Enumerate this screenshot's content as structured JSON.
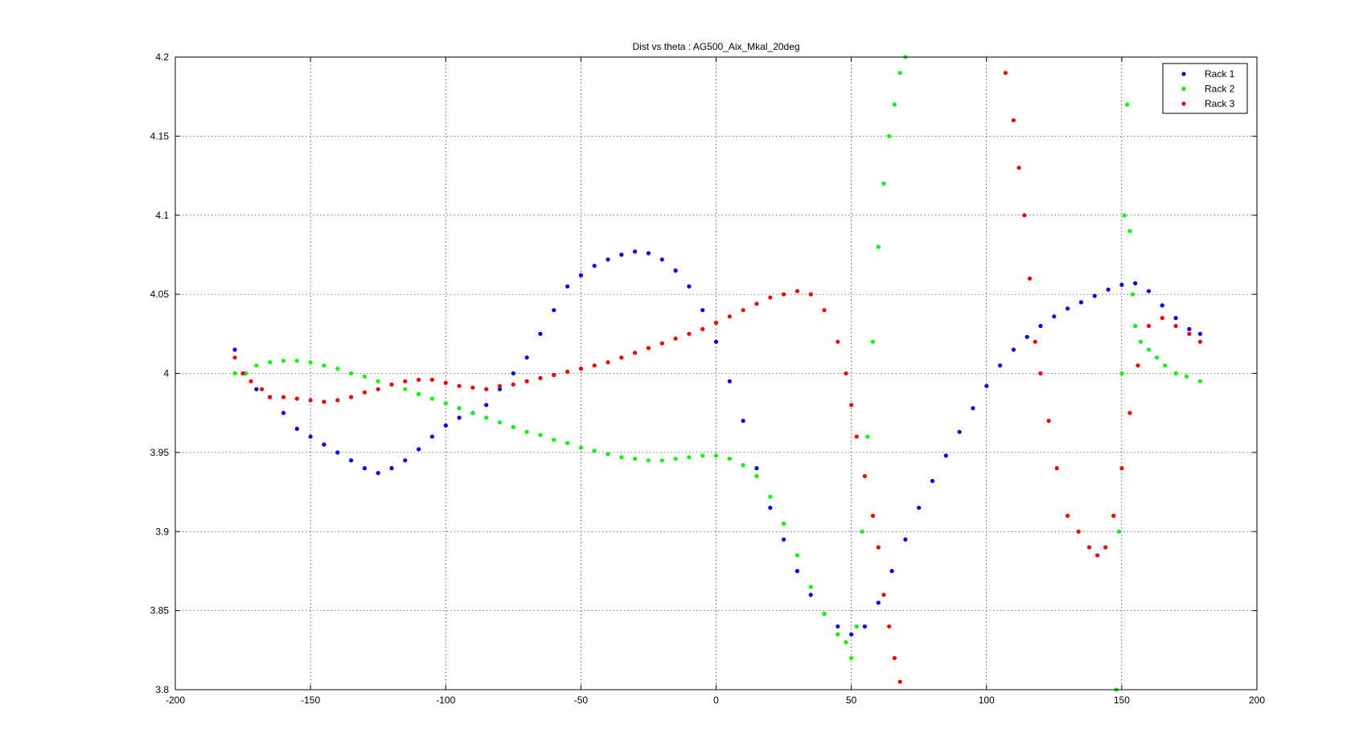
{
  "chart_data": {
    "type": "scatter",
    "title": "Dist vs theta : AG500_Aix_Mkal_20deg",
    "xlabel": "",
    "ylabel": "",
    "xlim": [
      -200,
      200
    ],
    "ylim": [
      3.8,
      4.2
    ],
    "xticks": [
      -200,
      -150,
      -100,
      -50,
      0,
      50,
      100,
      150,
      200
    ],
    "yticks": [
      3.8,
      3.85,
      3.9,
      3.95,
      4,
      4.05,
      4.1,
      4.15,
      4.2
    ],
    "xtick_labels": [
      "-200",
      "-150",
      "-100",
      "-50",
      "0",
      "50",
      "100",
      "150",
      "200"
    ],
    "ytick_labels": [
      "3.8",
      "3.85",
      "3.9",
      "3.95",
      "4",
      "4.05",
      "4.1",
      "4.15",
      "4.2"
    ],
    "grid": true,
    "legend_position": "top-right",
    "series": [
      {
        "name": "Rack 1",
        "color": "#0000ff",
        "marker": "dot",
        "x": [
          -178,
          -174,
          -170,
          -165,
          -160,
          -155,
          -150,
          -145,
          -140,
          -135,
          -130,
          -125,
          -120,
          -115,
          -110,
          -105,
          -100,
          -95,
          -90,
          -85,
          -80,
          -75,
          -70,
          -65,
          -60,
          -55,
          -50,
          -45,
          -40,
          -35,
          -30,
          -25,
          -20,
          -15,
          -10,
          -5,
          0,
          5,
          10,
          15,
          20,
          25,
          30,
          35,
          40,
          45,
          50,
          55,
          60,
          65,
          70,
          75,
          80,
          85,
          90,
          95,
          100,
          105,
          110,
          115,
          120,
          125,
          130,
          135,
          140,
          145,
          150,
          155,
          160,
          165,
          170,
          175,
          179
        ],
        "y": [
          4.015,
          4.0,
          3.99,
          3.985,
          3.975,
          3.965,
          3.96,
          3.955,
          3.95,
          3.945,
          3.94,
          3.937,
          3.94,
          3.945,
          3.952,
          3.96,
          3.967,
          3.972,
          3.975,
          3.98,
          3.99,
          4.0,
          4.01,
          4.025,
          4.04,
          4.055,
          4.062,
          4.068,
          4.072,
          4.075,
          4.077,
          4.076,
          4.072,
          4.065,
          4.055,
          4.04,
          4.02,
          3.995,
          3.97,
          3.94,
          3.915,
          3.895,
          3.875,
          3.86,
          3.848,
          3.84,
          3.835,
          3.84,
          3.855,
          3.875,
          3.895,
          3.915,
          3.932,
          3.948,
          3.963,
          3.978,
          3.992,
          4.005,
          4.015,
          4.023,
          4.03,
          4.036,
          4.041,
          4.045,
          4.049,
          4.053,
          4.056,
          4.057,
          4.052,
          4.043,
          4.035,
          4.028,
          4.025
        ]
      },
      {
        "name": "Rack 2",
        "color": "#00ff00",
        "marker": "dot",
        "x": [
          -178,
          -174,
          -170,
          -165,
          -160,
          -155,
          -150,
          -145,
          -140,
          -135,
          -130,
          -125,
          -120,
          -115,
          -110,
          -105,
          -100,
          -95,
          -90,
          -85,
          -80,
          -75,
          -70,
          -65,
          -60,
          -55,
          -50,
          -45,
          -40,
          -35,
          -30,
          -25,
          -20,
          -15,
          -10,
          -5,
          0,
          5,
          10,
          15,
          20,
          25,
          30,
          35,
          40,
          45,
          48,
          50,
          52,
          54,
          56,
          58,
          60,
          62,
          64,
          66,
          68,
          70,
          148,
          149,
          150,
          151,
          152,
          153,
          154,
          155,
          157,
          160,
          163,
          166,
          170,
          174,
          179
        ],
        "y": [
          4.0,
          4.0,
          4.005,
          4.007,
          4.008,
          4.008,
          4.007,
          4.005,
          4.003,
          4.0,
          3.998,
          3.995,
          3.993,
          3.99,
          3.987,
          3.984,
          3.981,
          3.978,
          3.975,
          3.972,
          3.969,
          3.966,
          3.963,
          3.961,
          3.958,
          3.956,
          3.953,
          3.951,
          3.949,
          3.947,
          3.946,
          3.945,
          3.945,
          3.946,
          3.947,
          3.948,
          3.948,
          3.946,
          3.942,
          3.935,
          3.922,
          3.905,
          3.885,
          3.865,
          3.848,
          3.835,
          3.83,
          3.82,
          3.84,
          3.9,
          3.96,
          4.02,
          4.08,
          4.12,
          4.15,
          4.17,
          4.19,
          4.2,
          3.8,
          3.9,
          4.0,
          4.1,
          4.17,
          4.09,
          4.05,
          4.03,
          4.02,
          4.015,
          4.01,
          4.005,
          4.0,
          3.998,
          3.995
        ]
      },
      {
        "name": "Rack 3",
        "color": "#ff0000",
        "marker": "dot",
        "x": [
          -178,
          -175,
          -172,
          -168,
          -165,
          -160,
          -155,
          -150,
          -145,
          -140,
          -135,
          -130,
          -125,
          -120,
          -115,
          -110,
          -105,
          -100,
          -95,
          -90,
          -85,
          -80,
          -75,
          -70,
          -65,
          -60,
          -55,
          -50,
          -45,
          -40,
          -35,
          -30,
          -25,
          -20,
          -15,
          -10,
          -5,
          0,
          5,
          10,
          15,
          20,
          25,
          30,
          35,
          40,
          45,
          48,
          50,
          52,
          55,
          58,
          60,
          62,
          64,
          66,
          68,
          107,
          110,
          112,
          114,
          116,
          118,
          120,
          123,
          126,
          130,
          134,
          138,
          141,
          144,
          147,
          150,
          153,
          156,
          160,
          165,
          170,
          175,
          179
        ],
        "y": [
          4.01,
          4.0,
          3.995,
          3.99,
          3.985,
          3.985,
          3.984,
          3.983,
          3.982,
          3.983,
          3.985,
          3.988,
          3.99,
          3.993,
          3.995,
          3.996,
          3.996,
          3.994,
          3.992,
          3.991,
          3.99,
          3.992,
          3.993,
          3.995,
          3.997,
          3.999,
          4.001,
          4.003,
          4.005,
          4.007,
          4.01,
          4.013,
          4.016,
          4.019,
          4.022,
          4.025,
          4.028,
          4.032,
          4.036,
          4.04,
          4.044,
          4.048,
          4.05,
          4.052,
          4.05,
          4.04,
          4.02,
          4.0,
          3.98,
          3.96,
          3.935,
          3.91,
          3.89,
          3.86,
          3.84,
          3.82,
          3.805,
          4.19,
          4.16,
          4.13,
          4.1,
          4.06,
          4.02,
          4.0,
          3.97,
          3.94,
          3.91,
          3.9,
          3.89,
          3.885,
          3.89,
          3.91,
          3.94,
          3.975,
          4.005,
          4.03,
          4.035,
          4.03,
          4.025,
          4.02
        ]
      }
    ]
  },
  "legend": {
    "items": [
      {
        "label": "Rack 1",
        "color": "#0000ff"
      },
      {
        "label": "Rack 2",
        "color": "#00ff00"
      },
      {
        "label": "Rack 3",
        "color": "#ff0000"
      }
    ]
  }
}
